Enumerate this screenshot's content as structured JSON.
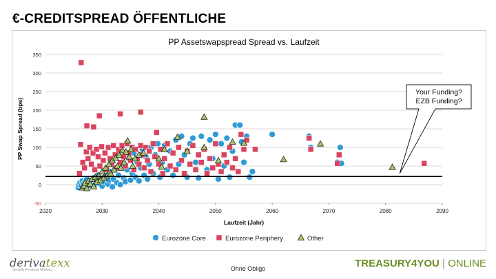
{
  "slide": {
    "title": "€-CREDITSPREAD ÖFFENTLICHE",
    "footer_text": "Ohne Obligo",
    "logo_prefix": "deriva",
    "logo_accent": "texx",
    "logo_tagline": "Simplify Financial Markets",
    "brand_main": "TREASURY4YOU",
    "brand_sep": "|",
    "brand_suffix": "ONLINE"
  },
  "chart_data": {
    "type": "scatter",
    "title": "PP Assetswapspread Spread vs. Laufzeit",
    "xlabel": "Laufzeit (Jahr)",
    "ylabel": "PP Swap Spread (bps)",
    "xlim": [
      2020,
      2090
    ],
    "ylim": [
      -50,
      350
    ],
    "xticks": [
      "2020",
      "2030",
      "2040",
      "2050",
      "2060",
      "2070",
      "2080",
      "2090"
    ],
    "yticks": [
      "-50",
      "0",
      "50",
      "100",
      "150",
      "200",
      "250",
      "300",
      "350"
    ],
    "grid": "horizontal",
    "legend_position": "bottom",
    "reference_line": 22,
    "callout": {
      "lines": [
        "Your Funding?",
        "EZB Funding?"
      ],
      "x": 2082.5,
      "y": 30
    },
    "series": [
      {
        "name": "Eurozone Core",
        "color": "#2e9bd6",
        "marker": "circle",
        "points": [
          [
            2025.8,
            -8
          ],
          [
            2025.9,
            0
          ],
          [
            2026.1,
            5
          ],
          [
            2026.3,
            -3
          ],
          [
            2026.5,
            10
          ],
          [
            2026.7,
            2
          ],
          [
            2026.9,
            -5
          ],
          [
            2027.1,
            8
          ],
          [
            2027.3,
            15
          ],
          [
            2027.5,
            3
          ],
          [
            2027.8,
            -2
          ],
          [
            2028.0,
            12
          ],
          [
            2028.2,
            6
          ],
          [
            2028.5,
            18
          ],
          [
            2028.7,
            0
          ],
          [
            2029.0,
            10
          ],
          [
            2029.2,
            25
          ],
          [
            2029.4,
            4
          ],
          [
            2029.7,
            14
          ],
          [
            2030.0,
            -4
          ],
          [
            2030.2,
            8
          ],
          [
            2030.4,
            20
          ],
          [
            2030.7,
            30
          ],
          [
            2031.0,
            2
          ],
          [
            2031.2,
            12
          ],
          [
            2031.5,
            35
          ],
          [
            2031.8,
            -6
          ],
          [
            2032.0,
            15
          ],
          [
            2032.3,
            45
          ],
          [
            2032.6,
            5
          ],
          [
            2032.9,
            25
          ],
          [
            2033.2,
            0
          ],
          [
            2033.5,
            55
          ],
          [
            2033.8,
            18
          ],
          [
            2034.1,
            8
          ],
          [
            2034.4,
            40
          ],
          [
            2034.7,
            70
          ],
          [
            2035.0,
            12
          ],
          [
            2035.3,
            30
          ],
          [
            2035.6,
            85
          ],
          [
            2035.9,
            20
          ],
          [
            2036.2,
            60
          ],
          [
            2036.5,
            10
          ],
          [
            2036.8,
            45
          ],
          [
            2037.1,
            95
          ],
          [
            2037.4,
            25
          ],
          [
            2037.7,
            75
          ],
          [
            2038.0,
            15
          ],
          [
            2038.3,
            55
          ],
          [
            2038.6,
            100
          ],
          [
            2039.0,
            30
          ],
          [
            2039.4,
            80
          ],
          [
            2039.8,
            110
          ],
          [
            2040.2,
            20
          ],
          [
            2040.6,
            60
          ],
          [
            2041.0,
            105
          ],
          [
            2041.5,
            40
          ],
          [
            2042.0,
            90
          ],
          [
            2042.5,
            25
          ],
          [
            2043.0,
            120
          ],
          [
            2043.5,
            55
          ],
          [
            2044.0,
            130
          ],
          [
            2044.5,
            80
          ],
          [
            2045.0,
            20
          ],
          [
            2045.5,
            110
          ],
          [
            2046.0,
            125
          ],
          [
            2046.5,
            60
          ],
          [
            2047.0,
            18
          ],
          [
            2047.5,
            130
          ],
          [
            2048.0,
            95
          ],
          [
            2048.5,
            40
          ],
          [
            2049.0,
            120
          ],
          [
            2049.5,
            70
          ],
          [
            2050.0,
            135
          ],
          [
            2050.5,
            15
          ],
          [
            2051.0,
            110
          ],
          [
            2051.5,
            50
          ],
          [
            2052.0,
            125
          ],
          [
            2052.5,
            20
          ],
          [
            2053.0,
            90
          ],
          [
            2053.5,
            160
          ],
          [
            2054.0,
            35
          ],
          [
            2054.3,
            160
          ],
          [
            2054.6,
            115
          ],
          [
            2055.0,
            60
          ],
          [
            2055.5,
            130
          ],
          [
            2056.0,
            20
          ],
          [
            2056.5,
            35
          ],
          [
            2060.0,
            135
          ],
          [
            2066.5,
            130
          ],
          [
            2066.8,
            100
          ],
          [
            2071.5,
            60
          ],
          [
            2072.0,
            100
          ],
          [
            2072.2,
            57
          ]
        ]
      },
      {
        "name": "Eurozone Periphery",
        "color": "#d9455f",
        "marker": "square",
        "points": [
          [
            2026.3,
            328
          ],
          [
            2027.3,
            158
          ],
          [
            2028.5,
            155
          ],
          [
            2029.5,
            185
          ],
          [
            2033.2,
            190
          ],
          [
            2036.8,
            195
          ],
          [
            2026.0,
            30
          ],
          [
            2026.2,
            108
          ],
          [
            2026.6,
            60
          ],
          [
            2026.9,
            45
          ],
          [
            2027.2,
            88
          ],
          [
            2027.5,
            70
          ],
          [
            2027.8,
            100
          ],
          [
            2028.1,
            55
          ],
          [
            2028.4,
            85
          ],
          [
            2028.7,
            40
          ],
          [
            2029.0,
            95
          ],
          [
            2029.3,
            75
          ],
          [
            2029.6,
            50
          ],
          [
            2029.9,
            102
          ],
          [
            2030.2,
            65
          ],
          [
            2030.5,
            85
          ],
          [
            2030.8,
            40
          ],
          [
            2031.1,
            100
          ],
          [
            2031.4,
            70
          ],
          [
            2031.7,
            55
          ],
          [
            2032.0,
            105
          ],
          [
            2032.3,
            80
          ],
          [
            2032.6,
            45
          ],
          [
            2032.9,
            95
          ],
          [
            2033.2,
            60
          ],
          [
            2033.5,
            105
          ],
          [
            2033.8,
            75
          ],
          [
            2034.1,
            50
          ],
          [
            2034.4,
            110
          ],
          [
            2034.7,
            85
          ],
          [
            2035.0,
            65
          ],
          [
            2035.3,
            100
          ],
          [
            2035.6,
            40
          ],
          [
            2035.9,
            95
          ],
          [
            2036.2,
            70
          ],
          [
            2036.5,
            55
          ],
          [
            2036.8,
            105
          ],
          [
            2037.1,
            80
          ],
          [
            2037.4,
            45
          ],
          [
            2037.7,
            100
          ],
          [
            2038.0,
            65
          ],
          [
            2038.3,
            90
          ],
          [
            2038.6,
            35
          ],
          [
            2039.0,
            110
          ],
          [
            2039.3,
            75
          ],
          [
            2039.6,
            140
          ],
          [
            2040.0,
            55
          ],
          [
            2040.3,
            95
          ],
          [
            2040.7,
            30
          ],
          [
            2041.0,
            70
          ],
          [
            2041.5,
            110
          ],
          [
            2042.0,
            50
          ],
          [
            2042.5,
            85
          ],
          [
            2043.0,
            40
          ],
          [
            2043.5,
            100
          ],
          [
            2044.0,
            65
          ],
          [
            2044.5,
            30
          ],
          [
            2045.0,
            90
          ],
          [
            2045.5,
            55
          ],
          [
            2046.0,
            105
          ],
          [
            2046.5,
            40
          ],
          [
            2047.0,
            80
          ],
          [
            2047.5,
            60
          ],
          [
            2048.0,
            95
          ],
          [
            2048.5,
            30
          ],
          [
            2049.0,
            70
          ],
          [
            2049.5,
            45
          ],
          [
            2050.0,
            110
          ],
          [
            2050.5,
            55
          ],
          [
            2051.0,
            35
          ],
          [
            2051.5,
            80
          ],
          [
            2052.0,
            60
          ],
          [
            2052.5,
            100
          ],
          [
            2053.0,
            45
          ],
          [
            2053.5,
            70
          ],
          [
            2054.0,
            35
          ],
          [
            2054.5,
            135
          ],
          [
            2055.0,
            95
          ],
          [
            2055.5,
            120
          ],
          [
            2057.0,
            95
          ],
          [
            2066.5,
            125
          ],
          [
            2066.8,
            95
          ],
          [
            2071.5,
            57
          ],
          [
            2071.8,
            80
          ],
          [
            2086.8,
            57
          ]
        ]
      },
      {
        "name": "Other",
        "color": "#a9c46c",
        "marker": "triangle",
        "points": [
          [
            2026.5,
            -8
          ],
          [
            2026.8,
            -3
          ],
          [
            2027.0,
            5
          ],
          [
            2027.3,
            -10
          ],
          [
            2027.6,
            10
          ],
          [
            2027.9,
            2
          ],
          [
            2028.2,
            15
          ],
          [
            2028.5,
            -5
          ],
          [
            2028.8,
            20
          ],
          [
            2029.1,
            8
          ],
          [
            2029.4,
            25
          ],
          [
            2029.7,
            12
          ],
          [
            2030.0,
            35
          ],
          [
            2030.3,
            18
          ],
          [
            2030.6,
            45
          ],
          [
            2030.9,
            25
          ],
          [
            2031.2,
            55
          ],
          [
            2031.5,
            30
          ],
          [
            2031.8,
            65
          ],
          [
            2032.1,
            40
          ],
          [
            2032.4,
            72
          ],
          [
            2032.7,
            50
          ],
          [
            2033.0,
            80
          ],
          [
            2033.3,
            45
          ],
          [
            2033.6,
            92
          ],
          [
            2033.9,
            60
          ],
          [
            2034.2,
            88
          ],
          [
            2034.5,
            118
          ],
          [
            2034.8,
            75
          ],
          [
            2035.1,
            95
          ],
          [
            2035.4,
            50
          ],
          [
            2035.8,
            70
          ],
          [
            2036.5,
            80
          ],
          [
            2037.3,
            85
          ],
          [
            2040.0,
            70
          ],
          [
            2040.5,
            48
          ],
          [
            2041.0,
            95
          ],
          [
            2043.3,
            128
          ],
          [
            2045.0,
            90
          ],
          [
            2048.0,
            182
          ],
          [
            2048.0,
            100
          ],
          [
            2050.5,
            65
          ],
          [
            2053.0,
            115
          ],
          [
            2055.0,
            112
          ],
          [
            2062.0,
            68
          ],
          [
            2068.5,
            110
          ],
          [
            2081.2,
            47
          ]
        ]
      }
    ]
  }
}
